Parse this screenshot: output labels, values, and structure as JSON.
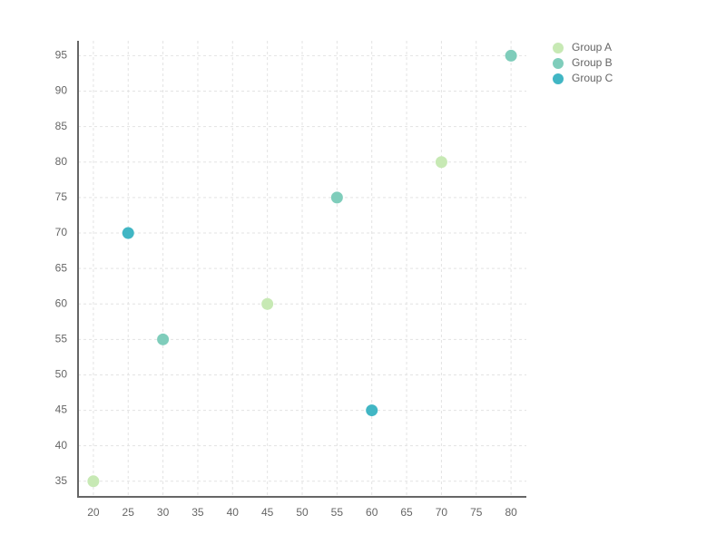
{
  "chart_data": {
    "type": "scatter",
    "series": [
      {
        "name": "Group A",
        "color": "#c7e9b4",
        "x": [
          20,
          45,
          70
        ],
        "values": [
          35,
          60,
          80
        ]
      },
      {
        "name": "Group B",
        "color": "#7fcdbb",
        "x": [
          30,
          55,
          80
        ],
        "values": [
          55,
          75,
          95
        ]
      },
      {
        "name": "Group C",
        "color": "#41b6c4",
        "x": [
          25,
          60
        ],
        "values": [
          70,
          45
        ]
      }
    ],
    "xlim": [
      17.8,
      82.2
    ],
    "ylim": [
      32.8,
      97.1
    ],
    "xticks": [
      20,
      25,
      30,
      35,
      40,
      45,
      50,
      55,
      60,
      65,
      70,
      75,
      80
    ],
    "yticks": [
      35,
      40,
      45,
      50,
      55,
      60,
      65,
      70,
      75,
      80,
      85,
      90,
      95
    ],
    "grid": true,
    "legend": "top-right"
  }
}
